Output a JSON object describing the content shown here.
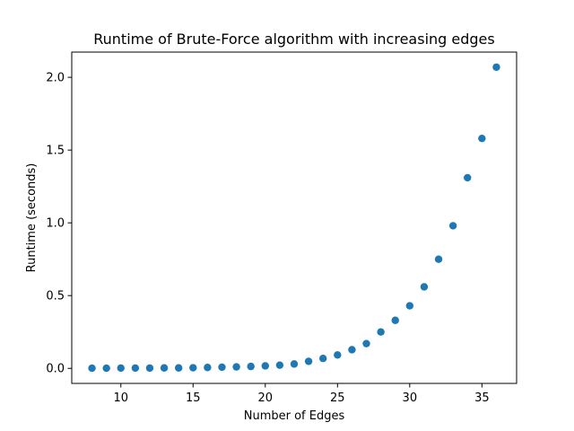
{
  "chart_data": {
    "type": "scatter",
    "title": "Runtime of Brute-Force algorithm with increasing edges",
    "xlabel": "Number of Edges",
    "ylabel": "Runtime (seconds)",
    "xlim": [
      6.6,
      37.4
    ],
    "ylim": [
      -0.1035,
      2.1735
    ],
    "xticks": [
      10,
      15,
      20,
      25,
      30,
      35
    ],
    "xtick_labels": [
      "10",
      "15",
      "20",
      "25",
      "30",
      "35"
    ],
    "yticks": [
      0.0,
      0.5,
      1.0,
      1.5,
      2.0
    ],
    "ytick_labels": [
      "0.0",
      "0.5",
      "1.0",
      "1.5",
      "2.0"
    ],
    "grid": false,
    "legend": "none",
    "marker_color": "#1f77b4",
    "series": [
      {
        "x": [
          8,
          9,
          10,
          11,
          12,
          13,
          14,
          15,
          16,
          17,
          18,
          19,
          20,
          21,
          22,
          23,
          24,
          25,
          26,
          27,
          28,
          29,
          30,
          31,
          32,
          33,
          34,
          35,
          36
        ],
        "y": [
          0.001,
          0.001,
          0.002,
          0.002,
          0.002,
          0.003,
          0.003,
          0.004,
          0.006,
          0.008,
          0.01,
          0.013,
          0.017,
          0.022,
          0.03,
          0.048,
          0.068,
          0.092,
          0.128,
          0.17,
          0.25,
          0.33,
          0.43,
          0.56,
          0.75,
          0.98,
          1.31,
          1.58,
          2.07
        ]
      }
    ]
  }
}
